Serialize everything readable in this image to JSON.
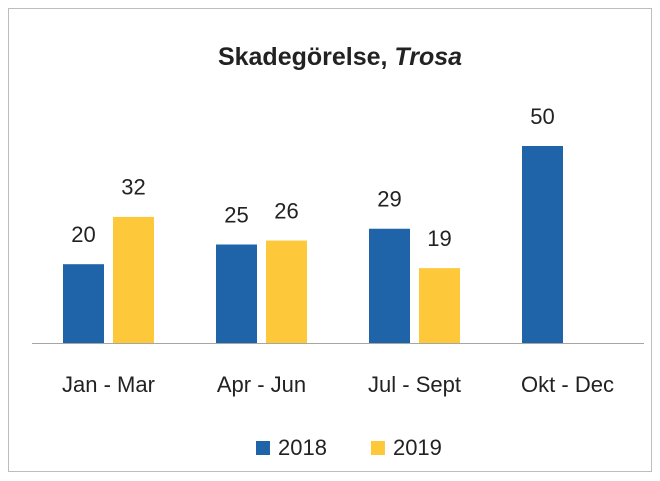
{
  "chart_data": {
    "type": "bar",
    "title": "Skadegörelse,",
    "title_italic": "Trosa",
    "categories": [
      "Jan - Mar",
      "Apr - Jun",
      "Jul - Sept",
      "Okt - Dec"
    ],
    "series": [
      {
        "name": "2018",
        "color": "#1f63a8",
        "values": [
          20,
          25,
          29,
          50
        ]
      },
      {
        "name": "2019",
        "color": "#fdc93a",
        "values": [
          32,
          26,
          19,
          null
        ]
      }
    ],
    "ylim": [
      0,
      50
    ]
  }
}
